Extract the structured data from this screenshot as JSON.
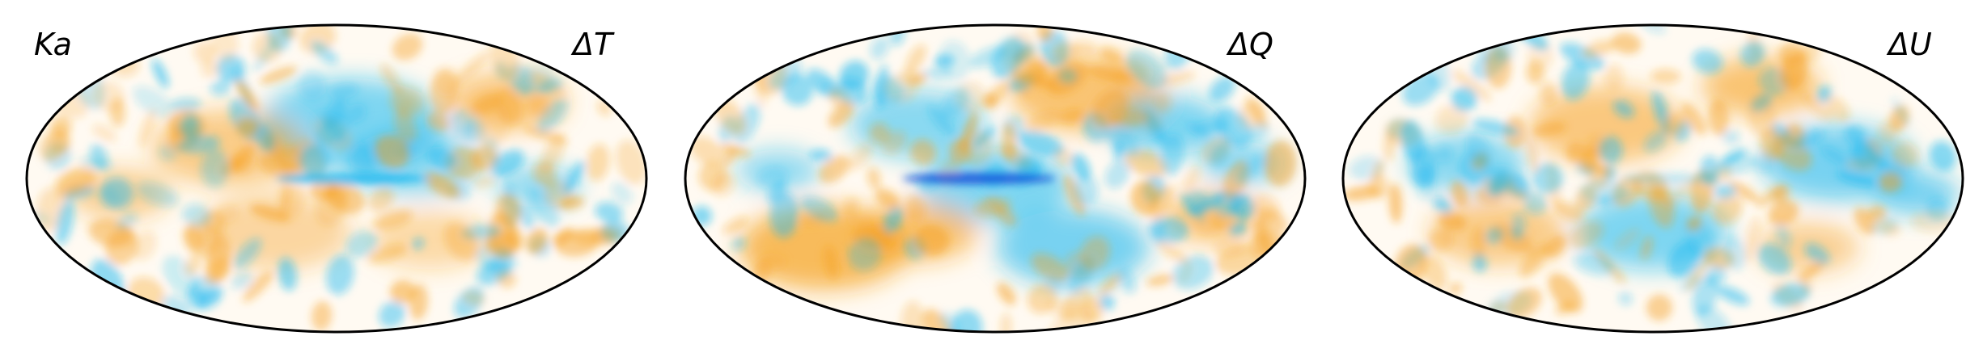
{
  "figure": {
    "panel_label": "Ka",
    "colors": {
      "warm": "#f5a020",
      "cool": "#1ab8f0",
      "deep_cool": "#1048d8",
      "neutral": "#fffaf2",
      "outline": "#000000"
    },
    "panels": [
      {
        "label": "ΔT"
      },
      {
        "label": "ΔQ"
      },
      {
        "label": "ΔU"
      }
    ]
  }
}
